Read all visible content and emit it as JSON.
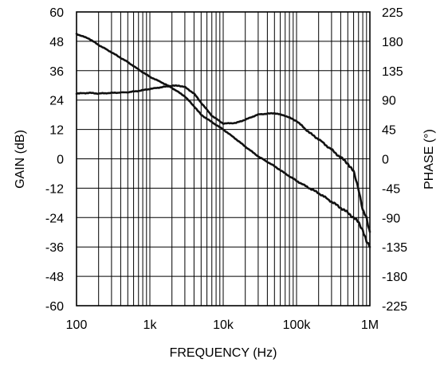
{
  "chart_data": {
    "type": "line",
    "xlabel": "FREQUENCY (Hz)",
    "ylabel_left": "GAIN (dB)",
    "ylabel_right": "PHASE (°)",
    "x_scale": "log",
    "xlim": [
      100,
      1000000
    ],
    "ylim_left": [
      -60,
      60
    ],
    "ylim_right": [
      -225,
      225
    ],
    "grid": true,
    "x_tick_labels": [
      {
        "value": 100,
        "label": "100"
      },
      {
        "value": 1000,
        "label": "1k"
      },
      {
        "value": 10000,
        "label": "10k"
      },
      {
        "value": 100000,
        "label": "100k"
      },
      {
        "value": 1000000,
        "label": "1M"
      }
    ],
    "left_tick_labels": [
      "60",
      "48",
      "36",
      "24",
      "12",
      "0",
      "-12",
      "-24",
      "-36",
      "-48",
      "-60"
    ],
    "right_tick_labels": [
      "225",
      "180",
      "135",
      "90",
      "45",
      "0",
      "-45",
      "-90",
      "-135",
      "-180",
      "-225"
    ],
    "series": [
      {
        "axis": "left",
        "x": [
          100,
          150,
          200,
          300,
          500,
          700,
          1000,
          1500,
          2000,
          3000,
          4000,
          5000,
          7000,
          10000,
          15000,
          20000,
          30000,
          50000,
          70000,
          100000,
          150000,
          200000,
          300000,
          400000,
          500000,
          600000,
          700000,
          800000,
          900000,
          1000000
        ],
        "values": [
          51,
          49,
          46.5,
          43.5,
          39.5,
          36.5,
          33.5,
          31,
          29,
          25.5,
          21.5,
          18,
          15,
          12,
          8,
          5,
          1,
          -3,
          -6,
          -9,
          -12,
          -14,
          -17.5,
          -20,
          -22,
          -24,
          -26,
          -29,
          -34,
          -36
        ]
      },
      {
        "axis": "right",
        "x": [
          100,
          150,
          200,
          300,
          500,
          700,
          1000,
          1500,
          2000,
          2500,
          3000,
          4000,
          5000,
          7000,
          10000,
          15000,
          20000,
          30000,
          50000,
          70000,
          100000,
          150000,
          200000,
          300000,
          400000,
          500000,
          600000,
          700000,
          800000,
          900000,
          1000000
        ],
        "values": [
          100,
          101,
          100,
          101,
          102,
          104,
          107,
          110,
          112,
          112,
          110,
          100,
          86,
          66,
          54,
          55,
          60,
          68,
          70,
          66,
          58,
          40,
          30,
          14,
          2,
          -7,
          -20,
          -45,
          -80,
          -90,
          -112
        ]
      }
    ]
  }
}
